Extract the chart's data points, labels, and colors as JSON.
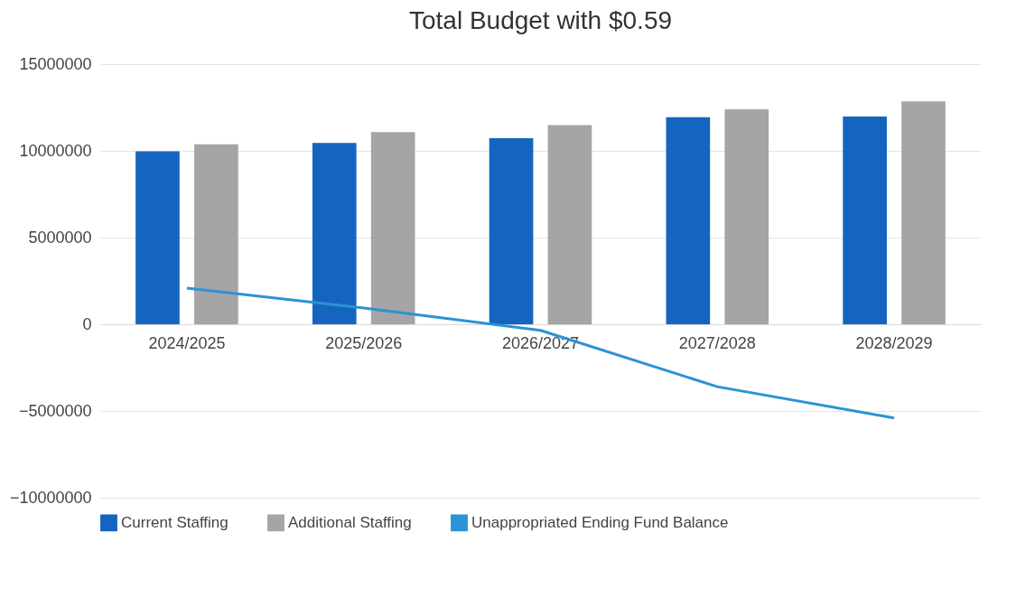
{
  "chart_data": {
    "type": "bar",
    "title": "Total Budget with $0.59",
    "categories": [
      "2024/2025",
      "2025/2026",
      "2026/2027",
      "2027/2028",
      "2028/2029"
    ],
    "series": [
      {
        "name": "Current Staffing",
        "color": "#1565c0",
        "values": [
          9970000,
          10450000,
          10730000,
          11940000,
          11980000
        ]
      },
      {
        "name": "Additional Staffing",
        "color": "#a5a5a5",
        "values": [
          10380000,
          11080000,
          11490000,
          12400000,
          12850000
        ]
      },
      {
        "name": "Unappropriated Ending Fund Balance",
        "color": "#2a93d5",
        "type": "line",
        "values": [
          2080000,
          940000,
          -350000,
          -3600000,
          -5400000
        ]
      }
    ],
    "ylim": [
      -10000000,
      15000000
    ],
    "yticks": [
      -10000000,
      -5000000,
      0,
      5000000,
      10000000,
      15000000
    ],
    "grid": "y",
    "legend": "bottom"
  }
}
